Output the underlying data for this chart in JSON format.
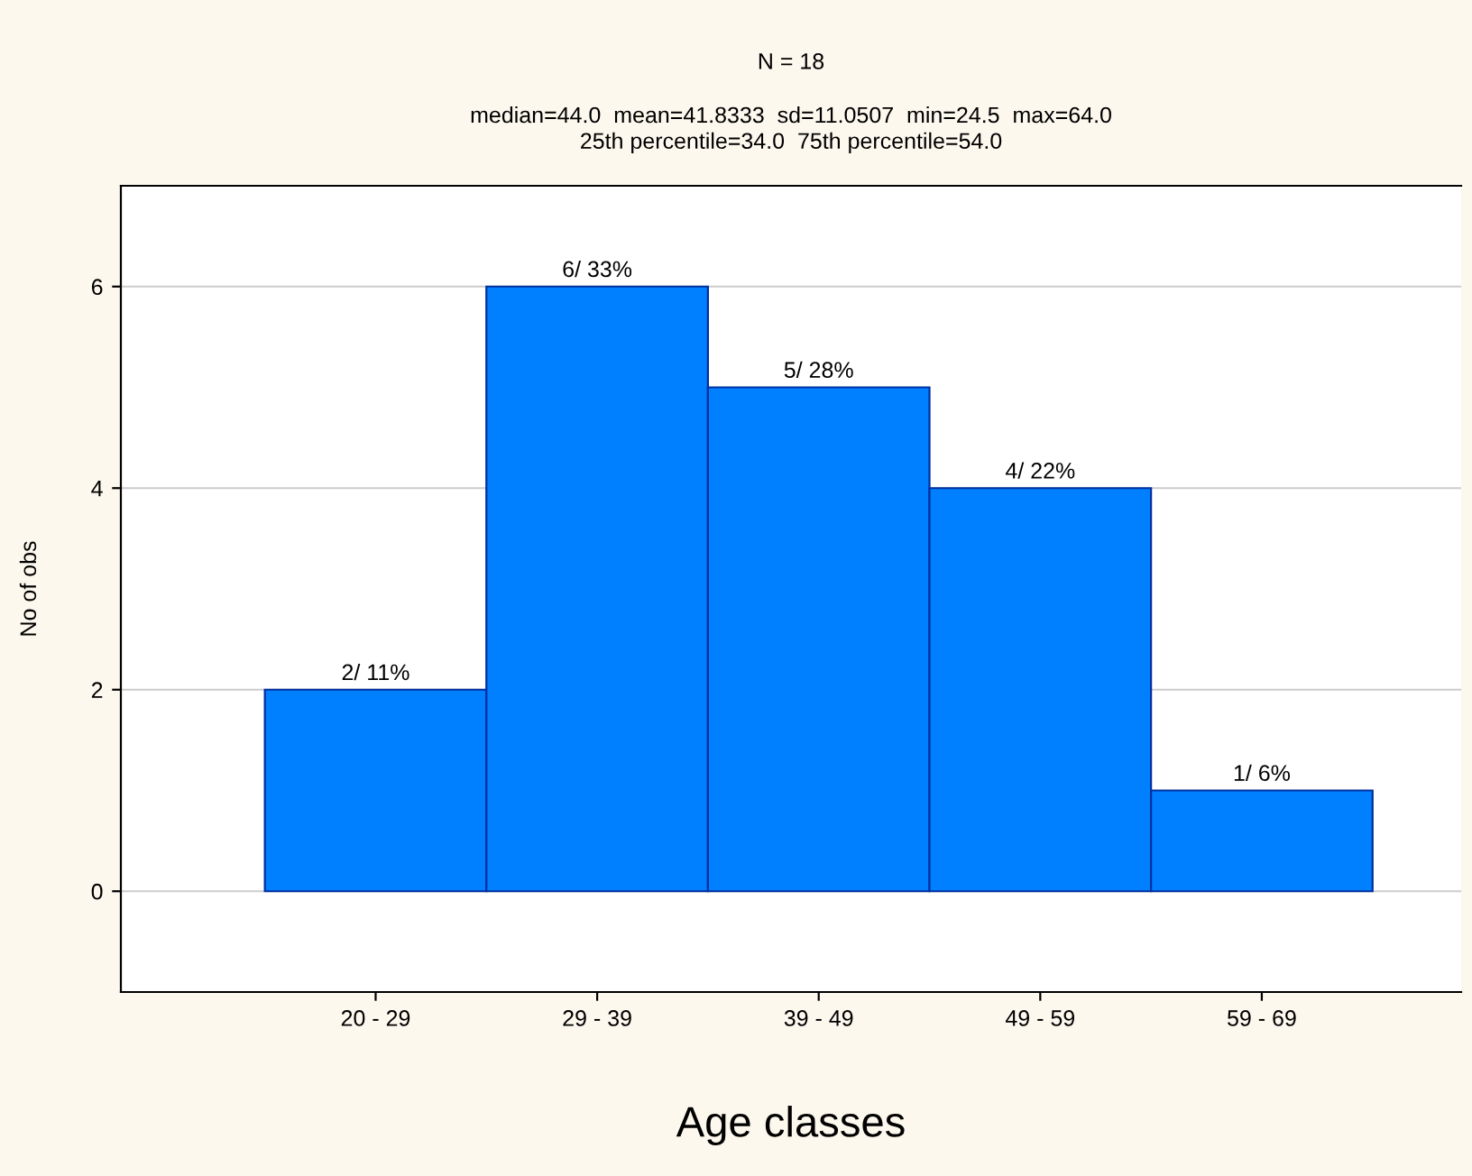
{
  "chart_data": {
    "type": "bar",
    "title": "N = 18",
    "subtitle": "median=44.0  mean=41.8333  sd=11.0507  min=24.5  max=64.0\n25th percentile=34.0  75th percentile=54.0",
    "xlabel": "Age classes",
    "ylabel": "No of obs",
    "categories": [
      "20 - 29",
      "29 - 39",
      "39 - 49",
      "49 - 59",
      "59 - 69"
    ],
    "values": [
      2,
      6,
      5,
      4,
      1
    ],
    "value_labels": [
      "2/ 11%",
      "6/ 33%",
      "5/ 28%",
      "4/ 22%",
      "1/ 6%"
    ],
    "color": "#0080ff",
    "ylim": [
      -1,
      7
    ],
    "yticks": [
      0,
      2,
      4,
      6
    ],
    "grid": "y"
  }
}
